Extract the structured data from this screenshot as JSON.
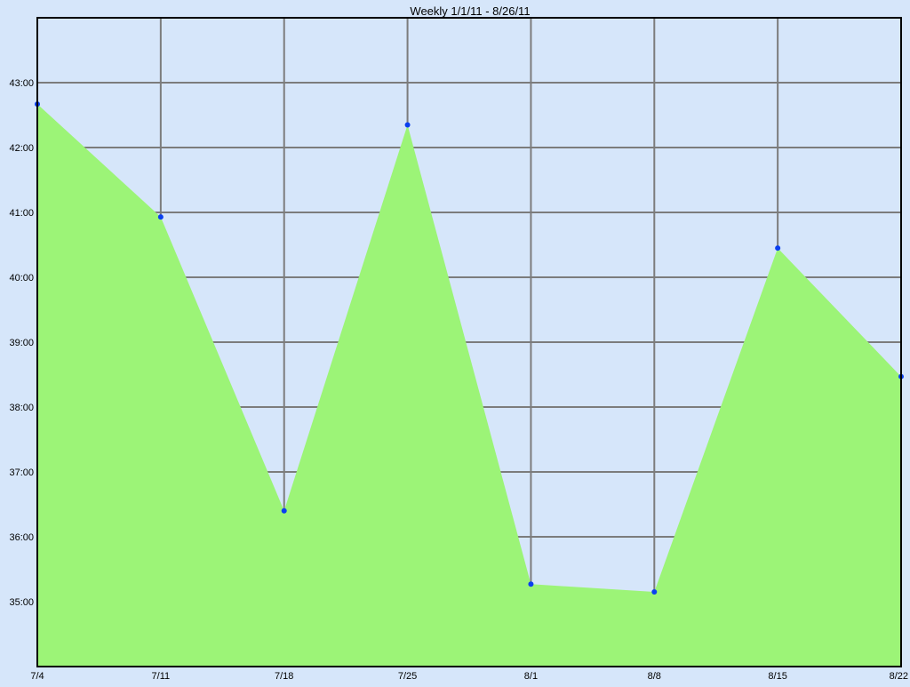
{
  "chart_data": {
    "type": "area",
    "title": "Weekly 1/1/11 - 8/26/11",
    "xlabel": "",
    "ylabel": "",
    "categories": [
      "7/4",
      "7/11",
      "7/18",
      "7/25",
      "8/1",
      "8/8",
      "8/15",
      "8/22"
    ],
    "series": [
      {
        "values": [
          42.67,
          40.93,
          36.4,
          42.35,
          35.27,
          35.15,
          40.45,
          38.47
        ]
      }
    ],
    "y_ticks": [
      {
        "value": 35,
        "label": "35:00"
      },
      {
        "value": 36,
        "label": "36:00"
      },
      {
        "value": 37,
        "label": "37:00"
      },
      {
        "value": 38,
        "label": "38:00"
      },
      {
        "value": 39,
        "label": "39:00"
      },
      {
        "value": 40,
        "label": "40:00"
      },
      {
        "value": 41,
        "label": "41:00"
      },
      {
        "value": 42,
        "label": "42:00"
      },
      {
        "value": 43,
        "label": "43:00"
      }
    ],
    "ylim": [
      34,
      44
    ],
    "grid": true,
    "legend": "none",
    "colors": {
      "background": "#d6e6fa",
      "fill": "#9cf477",
      "marker": "#0a3ff0",
      "grid": "#7c7c7c",
      "axis": "#000000"
    }
  }
}
